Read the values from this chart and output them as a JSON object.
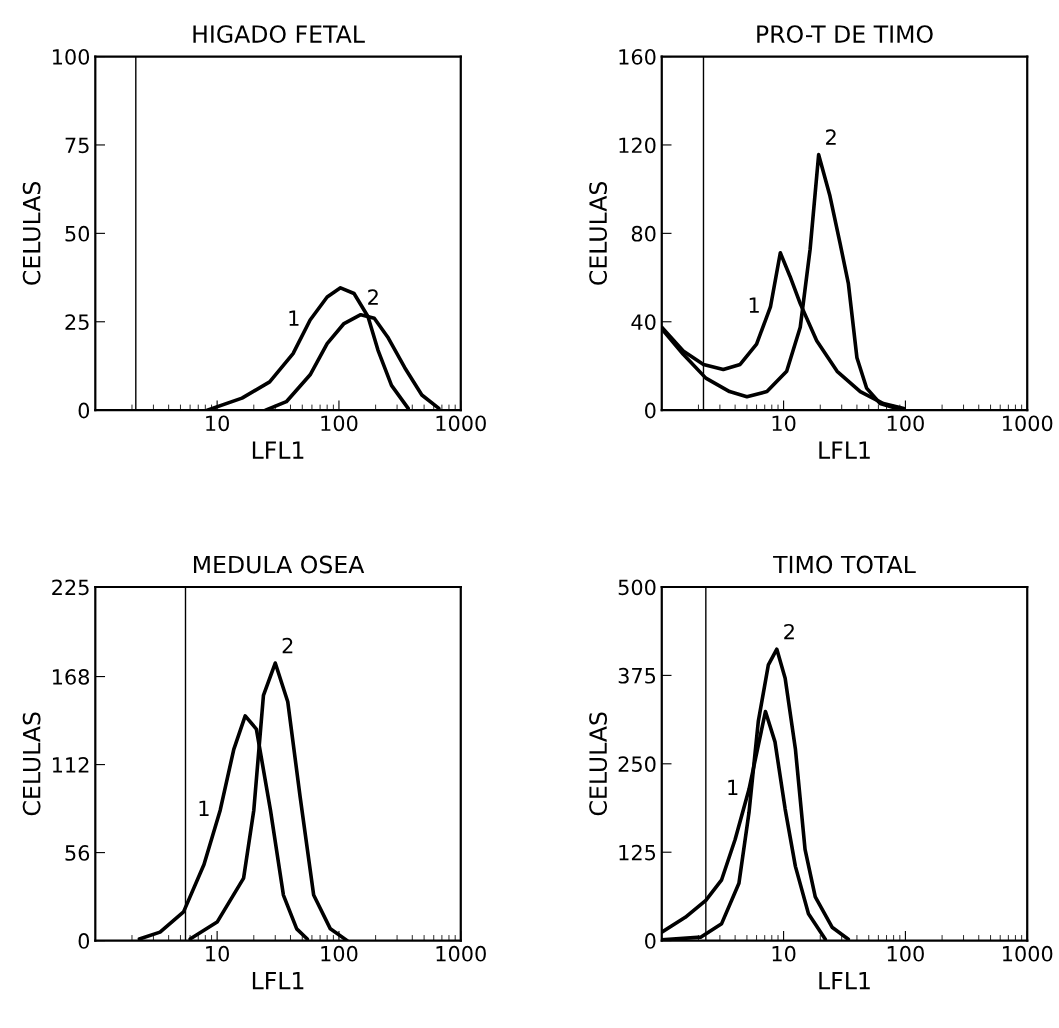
{
  "chart_data": [
    {
      "type": "line",
      "title": "HIGADO FETAL",
      "xlabel": "LFL1",
      "ylabel": "CELULAS",
      "log": "x",
      "xlim": [
        1,
        1000
      ],
      "xticks": [
        10,
        100,
        1000
      ],
      "ylim": [
        0,
        100
      ],
      "yticks": [
        0,
        25,
        50,
        75,
        100
      ],
      "grid": false,
      "legend": false,
      "marker": "none",
      "line_style": "solid",
      "ref_lines": [
        {
          "axis": "x",
          "value": 2.15,
          "color": "#000000"
        }
      ],
      "series": [
        {
          "name": "1",
          "color": "#000000",
          "x": [
            8.3,
            16,
            27,
            42,
            58,
            80,
            103,
            133,
            173,
            209,
            270,
            370
          ],
          "values": [
            0,
            3.4,
            8,
            16,
            25.5,
            32,
            34.6,
            33,
            26.5,
            17,
            7,
            0.5
          ]
        },
        {
          "name": "2",
          "color": "#000000",
          "x": [
            25,
            37,
            58,
            80,
            110,
            151,
            195,
            251,
            347,
            479,
            661
          ],
          "values": [
            0,
            2.4,
            10,
            18.8,
            24.5,
            27,
            26,
            20.7,
            12,
            4.3,
            0.5
          ]
        }
      ]
    },
    {
      "type": "line",
      "title": "PRO-T DE TIMO",
      "xlabel": "LFL1",
      "ylabel": "CELULAS",
      "log": "x",
      "xlim": [
        1,
        1000
      ],
      "xticks": [
        10,
        100,
        1000
      ],
      "ylim": [
        0,
        160
      ],
      "yticks": [
        0,
        40,
        80,
        120,
        160
      ],
      "grid": false,
      "legend": false,
      "marker": "none",
      "line_style": "solid",
      "ref_lines": [
        {
          "axis": "x",
          "value": 2.2,
          "color": "#000000"
        }
      ],
      "series": [
        {
          "name": "1",
          "color": "#000000",
          "x": [
            1,
            1.5,
            2.2,
            3.2,
            4.4,
            6.0,
            7.8,
            9.4,
            11.3,
            13.7,
            18.7,
            27.5,
            42.6,
            66,
            97
          ],
          "values": [
            37.5,
            26.8,
            20.7,
            18.4,
            20.7,
            29.9,
            46.7,
            71.2,
            60.5,
            48.2,
            31.4,
            17.6,
            8.4,
            3,
            0.8
          ]
        },
        {
          "name": "2",
          "color": "#000000",
          "x": [
            1,
            1.5,
            2.3,
            3.6,
            5,
            7.3,
            10.6,
            13.7,
            16.5,
            19.4,
            24,
            29,
            34,
            40,
            48,
            62,
            85
          ],
          "values": [
            36.8,
            25.3,
            14.5,
            8.4,
            6.1,
            8.4,
            17.6,
            37.5,
            72.7,
            115.6,
            97,
            75.8,
            57.4,
            23.7,
            10,
            3,
            0.8
          ]
        }
      ]
    },
    {
      "type": "line",
      "title": "MEDULA OSEA",
      "xlabel": "LFL1",
      "ylabel": "CELULAS",
      "log": "x",
      "xlim": [
        1,
        1000
      ],
      "xticks": [
        10,
        100,
        1000
      ],
      "ylim": [
        0,
        225
      ],
      "yticks": [
        0,
        56,
        112,
        168,
        225
      ],
      "grid": false,
      "legend": false,
      "marker": "none",
      "line_style": "solid",
      "ref_lines": [
        {
          "axis": "x",
          "value": 5.5,
          "color": "#000000"
        }
      ],
      "series": [
        {
          "name": "1",
          "color": "#000000",
          "x": [
            2.3,
            3.4,
            5.3,
            7.8,
            10.6,
            13.7,
            17,
            21,
            27.4,
            35,
            45,
            55
          ],
          "values": [
            1,
            5.4,
            18.3,
            48.4,
            83,
            121.7,
            143,
            134.6,
            83,
            29,
            7.5,
            1
          ]
        },
        {
          "name": "2",
          "color": "#000000",
          "x": [
            6,
            10,
            16.5,
            20,
            24,
            30,
            38,
            48,
            62,
            85,
            117
          ],
          "values": [
            1,
            11.8,
            39.8,
            83,
            156,
            176.6,
            152,
            91.5,
            29,
            7.5,
            0
          ]
        }
      ]
    },
    {
      "type": "line",
      "title": "TIMO TOTAL",
      "xlabel": "LFL1",
      "ylabel": "CELULAS",
      "log": "x",
      "xlim": [
        1,
        1000
      ],
      "xticks": [
        10,
        100,
        1000
      ],
      "ylim": [
        0,
        500
      ],
      "yticks": [
        0,
        125,
        250,
        375,
        500
      ],
      "grid": false,
      "legend": false,
      "marker": "none",
      "line_style": "solid",
      "ref_lines": [
        {
          "axis": "x",
          "value": 2.3,
          "color": "#000000"
        }
      ],
      "series": [
        {
          "name": "1",
          "color": "#000000",
          "x": [
            1,
            1.56,
            2.3,
            3.1,
            4.0,
            5.2,
            7.1,
            8.5,
            10.3,
            12.5,
            16,
            22
          ],
          "values": [
            12,
            33,
            57,
            86,
            143,
            214,
            324,
            281,
            186,
            105,
            38,
            2
          ]
        },
        {
          "name": "2",
          "color": "#000000",
          "x": [
            1,
            2.1,
            3.1,
            4.3,
            5.2,
            6.2,
            7.5,
            8.8,
            10.3,
            12.5,
            15,
            18.2,
            25,
            34
          ],
          "values": [
            1,
            5,
            24,
            81,
            181,
            310,
            390,
            412,
            371,
            271,
            129,
            62,
            19,
            2
          ]
        }
      ]
    }
  ]
}
